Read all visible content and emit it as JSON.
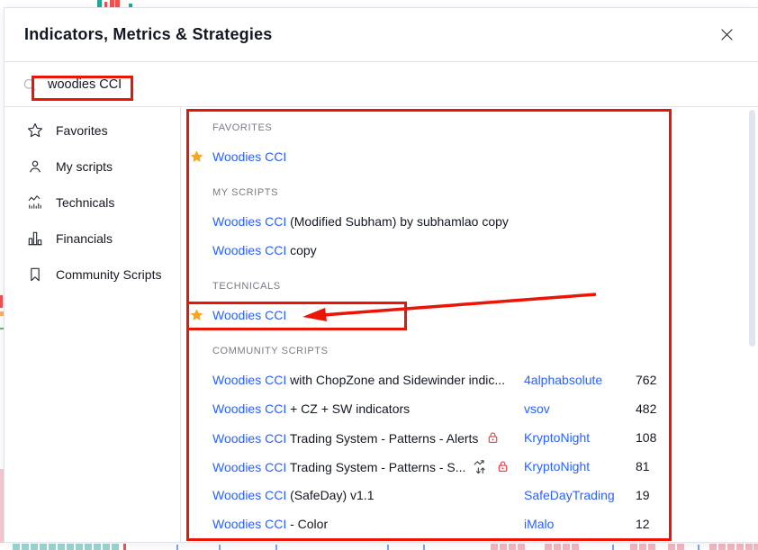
{
  "window": {
    "title": "Indicators, Metrics & Strategies",
    "close_icon": "close-x"
  },
  "search": {
    "value": "woodies CCI",
    "icon": "magnifier"
  },
  "sidebar": {
    "items": [
      {
        "id": "favorites",
        "label": "Favorites",
        "icon": "star-outline"
      },
      {
        "id": "my-scripts",
        "label": "My scripts",
        "icon": "person"
      },
      {
        "id": "technicals",
        "label": "Technicals",
        "icon": "line-chart"
      },
      {
        "id": "financials",
        "label": "Financials",
        "icon": "bar-chart"
      },
      {
        "id": "community-scripts",
        "label": "Community Scripts",
        "icon": "bookmark"
      }
    ]
  },
  "list": {
    "sections": [
      {
        "header": "FAVORITES",
        "rows": [
          {
            "starred": true,
            "link": "Woodies CCI",
            "rest": ""
          }
        ]
      },
      {
        "header": "MY SCRIPTS",
        "rows": [
          {
            "link": "Woodies CCI",
            "rest": " (Modified Subham) by subhamlao copy"
          },
          {
            "link": "Woodies CCI",
            "rest": " copy"
          }
        ]
      },
      {
        "header": "TECHNICALS",
        "rows": [
          {
            "starred": true,
            "link": "Woodies CCI",
            "rest": "",
            "highlighted": true
          }
        ]
      },
      {
        "header": "COMMUNITY SCRIPTS",
        "rows": [
          {
            "link": "Woodies CCI",
            "rest": " with ChopZone and Sidewinder indic...",
            "author": "4alphabsolute",
            "likes": "762"
          },
          {
            "link": "Woodies CCI",
            "rest": " + CZ + SW indicators",
            "author": "vsov",
            "likes": "482"
          },
          {
            "link": "Woodies CCI",
            "rest": " Trading System - Patterns - Alerts",
            "icons": [
              "lock"
            ],
            "author": "KryptoNight",
            "likes": "108"
          },
          {
            "link": "Woodies CCI",
            "rest": " Trading System - Patterns - S...",
            "icons": [
              "strategy",
              "lock"
            ],
            "author": "KryptoNight",
            "likes": "81"
          },
          {
            "link": "Woodies CCI",
            "rest": " (SafeDay) v1.1",
            "author": "SafeDayTrading",
            "likes": "19"
          },
          {
            "link": "Woodies CCI",
            "rest": " - Color",
            "author": "iMalo",
            "likes": "12"
          }
        ]
      }
    ]
  },
  "colors": {
    "link_blue": "#2962ff",
    "star_gold": "#f5a623",
    "annotation_red": "#ec1505",
    "lock_red": "#f23645",
    "section_header_gray": "#787b86",
    "body_text": "#131722",
    "divider": "#e0e3eb",
    "candle_up_teal": "#26a69a",
    "candle_down_red": "#ef5350"
  }
}
